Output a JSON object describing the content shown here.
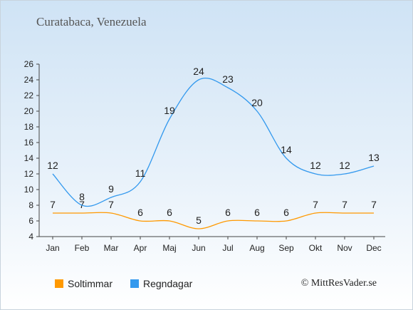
{
  "title": "Curatabaca, Venezuela",
  "copyright": "© MittResVader.se",
  "colors": {
    "sun": "#ff9900",
    "rain": "#3399ee"
  },
  "chart_data": {
    "type": "line",
    "categories": [
      "Jan",
      "Feb",
      "Mar",
      "Apr",
      "Maj",
      "Jun",
      "Jul",
      "Aug",
      "Sep",
      "Okt",
      "Nov",
      "Dec"
    ],
    "series": [
      {
        "name": "Soltimmar",
        "values": [
          7,
          7,
          7,
          6,
          6,
          5,
          6,
          6,
          6,
          7,
          7,
          7
        ]
      },
      {
        "name": "Regndagar",
        "values": [
          12,
          8,
          9,
          11,
          19,
          24,
          23,
          20,
          14,
          12,
          12,
          13
        ]
      }
    ],
    "ylim": [
      4,
      26
    ],
    "yticks": [
      4,
      6,
      8,
      10,
      12,
      14,
      16,
      18,
      20,
      22,
      24,
      26
    ],
    "legend": "bottom-left",
    "grid": false
  }
}
